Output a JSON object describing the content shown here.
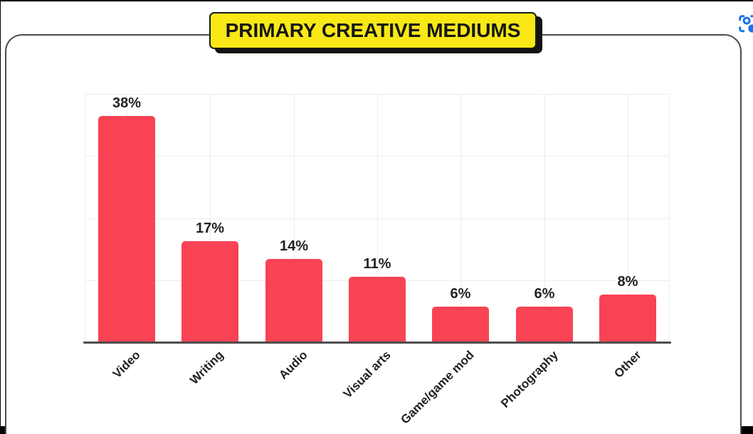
{
  "header": {
    "title": "PRIMARY CREATIVE MEDIUMS"
  },
  "icons": {
    "top_right": "lens-capture-icon"
  },
  "colors": {
    "bar_red": "#f94354",
    "banner_yellow": "#f9e816",
    "banner_border": "#1a1a1a",
    "axis_gray": "#4d4d4d",
    "gridline_gray": "#ededed",
    "label_black": "#212121",
    "icon_blue": "#1a73e8",
    "card_border": "#4a4a4a",
    "frame_black": "#000000"
  },
  "chart_data": {
    "type": "bar",
    "title": "PRIMARY CREATIVE MEDIUMS",
    "categories": [
      "Video",
      "Writing",
      "Audio",
      "Visual arts",
      "Game/game mod",
      "Photography",
      "Other"
    ],
    "values": [
      38,
      17,
      14,
      11,
      6,
      6,
      8
    ],
    "value_labels": [
      "38%",
      "17%",
      "14%",
      "11%",
      "6%",
      "6%",
      "8%"
    ],
    "unit": "%",
    "xlabel": "",
    "ylabel": "",
    "ylim": [
      0,
      41.7
    ],
    "grid": true,
    "legend": false,
    "bar_color": "#f94354",
    "label_rotation_deg": -45
  }
}
